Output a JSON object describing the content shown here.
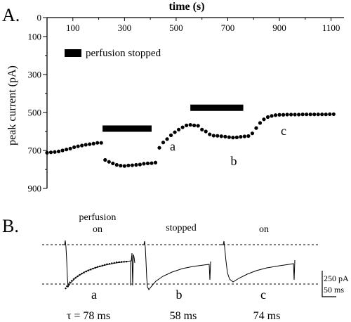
{
  "panel_a": {
    "label": "A.",
    "legend_text": "perfusion stopped",
    "phase_labels": [
      "a",
      "b",
      "c"
    ]
  },
  "panel_b": {
    "label": "B.",
    "conditions": [
      {
        "line1": "perfusion",
        "line2": "on",
        "trace": "a",
        "tau": "τ = 78 ms"
      },
      {
        "line1": "stopped",
        "line2": "",
        "trace": "b",
        "tau": "58 ms"
      },
      {
        "line1": "on",
        "line2": "",
        "trace": "c",
        "tau": "74 ms"
      }
    ],
    "scale_current": "250 pA",
    "scale_time": "50 ms"
  },
  "chart_data": [
    {
      "type": "scatter",
      "title": "",
      "xlabel": "time (s)",
      "ylabel": "peak current (pA)",
      "xlim": [
        0,
        1150
      ],
      "ylim": [
        0,
        900
      ],
      "y_inverted": true,
      "xticks": [
        100,
        300,
        500,
        700,
        900,
        1100
      ],
      "yticks": [
        0,
        100,
        300,
        500,
        700,
        900
      ],
      "series": [
        {
          "x": [
            0,
            15,
            30,
            45,
            60,
            75,
            90,
            105,
            120,
            135,
            150,
            165,
            180,
            195,
            210,
            225,
            240,
            255,
            270,
            285,
            300,
            315,
            330,
            345,
            360,
            375,
            390,
            405,
            420,
            435,
            450,
            465,
            480,
            495,
            510,
            525,
            540,
            555,
            570,
            585,
            600,
            615,
            630,
            645,
            660,
            675,
            690,
            705,
            720,
            735,
            750,
            765,
            780,
            795,
            810,
            825,
            840,
            855,
            870,
            885,
            900,
            915,
            930,
            945,
            960,
            975,
            990,
            1005,
            1020,
            1035,
            1050,
            1065,
            1080,
            1095,
            1110
          ],
          "y": [
            712,
            710,
            708,
            705,
            700,
            695,
            690,
            683,
            678,
            674,
            670,
            667,
            664,
            660,
            660,
            750,
            760,
            768,
            776,
            780,
            782,
            779,
            778,
            776,
            774,
            770,
            768,
            767,
            764,
            686,
            658,
            640,
            620,
            604,
            590,
            578,
            568,
            565,
            568,
            570,
            590,
            600,
            615,
            622,
            623,
            625,
            627,
            630,
            632,
            631,
            628,
            626,
            624,
            610,
            582,
            555,
            536,
            524,
            518,
            514,
            512,
            512,
            511,
            511,
            511,
            511,
            510,
            510,
            510,
            510,
            510,
            510,
            510,
            509,
            509
          ]
        }
      ],
      "annotations": [
        {
          "type": "bar",
          "label": "perfusion stopped",
          "x": [
            215,
            405
          ],
          "y": 585
        },
        {
          "type": "bar",
          "label": "perfusion stopped",
          "x": [
            555,
            760
          ],
          "y": 475
        }
      ]
    }
  ]
}
